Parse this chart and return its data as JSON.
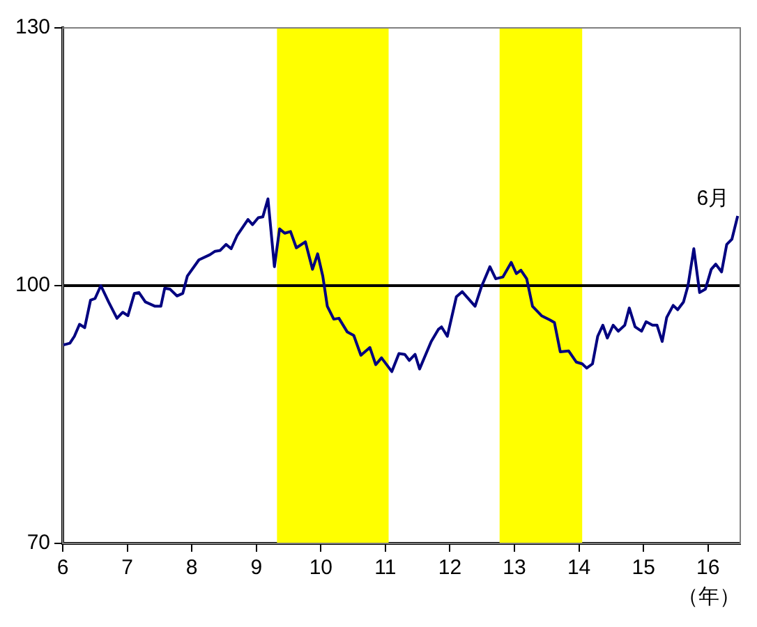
{
  "chart_data": {
    "type": "line",
    "xlabel": "（年）",
    "xlim": [
      6,
      16.5
    ],
    "xticks": [
      6,
      7,
      8,
      9,
      10,
      11,
      12,
      13,
      14,
      15,
      16
    ],
    "ylim": [
      70,
      130
    ],
    "yticks": [
      70,
      100,
      130
    ],
    "grid": false,
    "legend": false,
    "marker": "none",
    "line_style": "solid",
    "ref_lines": [
      {
        "axis": "y",
        "value": 100,
        "color": "#000000"
      }
    ],
    "bands": [
      {
        "axis": "x",
        "from": 9.32,
        "to": 11.05,
        "color": "#ffff00"
      },
      {
        "axis": "x",
        "from": 12.77,
        "to": 14.05,
        "color": "#ffff00"
      }
    ],
    "annotations": [
      {
        "text": "6月",
        "x": 16.46,
        "y": 108.1
      }
    ],
    "series": [
      {
        "color": "#000080",
        "x": [
          6.01,
          6.11,
          6.18,
          6.26,
          6.34,
          6.43,
          6.5,
          6.59,
          6.71,
          6.84,
          6.93,
          7.01,
          7.11,
          7.18,
          7.28,
          7.43,
          7.52,
          7.58,
          7.66,
          7.77,
          7.86,
          7.93,
          8.11,
          8.28,
          8.36,
          8.44,
          8.53,
          8.61,
          8.7,
          8.87,
          8.94,
          9.03,
          9.1,
          9.18,
          9.28,
          9.36,
          9.44,
          9.53,
          9.62,
          9.76,
          9.87,
          9.95,
          10.03,
          10.1,
          10.2,
          10.28,
          10.41,
          10.51,
          10.62,
          10.76,
          10.85,
          10.94,
          11.1,
          11.21,
          11.3,
          11.37,
          11.46,
          11.53,
          11.71,
          11.82,
          11.87,
          11.96,
          12.1,
          12.19,
          12.39,
          12.49,
          12.62,
          12.71,
          12.82,
          12.95,
          13.03,
          13.1,
          13.19,
          13.28,
          13.42,
          13.55,
          13.62,
          13.71,
          13.84,
          13.96,
          14.05,
          14.12,
          14.21,
          14.29,
          14.37,
          14.44,
          14.53,
          14.61,
          14.71,
          14.78,
          14.87,
          14.97,
          15.04,
          15.14,
          15.21,
          15.29,
          15.36,
          15.46,
          15.53,
          15.62,
          15.69,
          15.78,
          15.87,
          15.96,
          16.05,
          16.12,
          16.21,
          16.29,
          16.37,
          16.46
        ],
        "values": [
          93.1,
          93.3,
          94.1,
          95.5,
          95.1,
          98.3,
          98.5,
          100.0,
          98.1,
          96.2,
          96.9,
          96.5,
          99.1,
          99.2,
          98.1,
          97.6,
          97.6,
          99.7,
          99.6,
          98.8,
          99.1,
          101.1,
          103.0,
          103.6,
          104.0,
          104.1,
          104.8,
          104.3,
          105.8,
          107.7,
          107.1,
          107.9,
          108.0,
          110.1,
          102.2,
          106.6,
          106.1,
          106.3,
          104.4,
          105.1,
          101.9,
          103.7,
          101.1,
          97.6,
          96.1,
          96.2,
          94.6,
          94.2,
          91.9,
          92.8,
          90.8,
          91.6,
          90.0,
          92.1,
          92.0,
          91.3,
          92.0,
          90.3,
          93.5,
          94.9,
          95.2,
          94.1,
          98.7,
          99.3,
          97.6,
          99.9,
          102.2,
          100.8,
          101.0,
          102.7,
          101.4,
          101.8,
          100.8,
          97.6,
          96.5,
          96.0,
          95.7,
          92.3,
          92.4,
          91.1,
          90.9,
          90.4,
          90.9,
          94.1,
          95.4,
          93.9,
          95.4,
          94.7,
          95.4,
          97.4,
          95.2,
          94.7,
          95.8,
          95.4,
          95.4,
          93.5,
          96.3,
          97.7,
          97.2,
          98.1,
          100.0,
          104.3,
          99.2,
          99.6,
          101.9,
          102.5,
          101.6,
          104.8,
          105.4,
          108.1
        ]
      }
    ]
  }
}
